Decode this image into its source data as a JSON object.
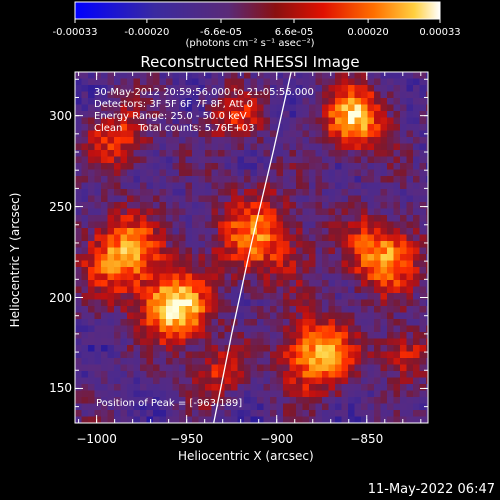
{
  "colorbar": {
    "tick_labels": [
      "-0.00033",
      "-0.00020",
      "-6.6e-05",
      "6.6e-05",
      "0.00020",
      "0.00033"
    ],
    "tick_values": [
      -0.00033,
      -0.0002,
      -6.6e-05,
      6.6e-05,
      0.0002,
      0.00033
    ],
    "range": [
      -0.00033,
      0.00033
    ],
    "unit_label": "(photons cm⁻² s⁻¹ asec⁻²)"
  },
  "chart_data": {
    "type": "heatmap",
    "title": "Reconstructed RHESSI Image",
    "xlabel": "Heliocentric X (arcsec)",
    "ylabel": "Heliocentric Y (arcsec)",
    "xlim": [
      -1012,
      -816
    ],
    "ylim": [
      131,
      324
    ],
    "x_ticks": [
      -1000,
      -950,
      -900,
      -850
    ],
    "x_tick_labels": [
      "−1000",
      "−950",
      "−900",
      "−850"
    ],
    "y_ticks": [
      150,
      200,
      250,
      300
    ],
    "y_tick_labels": [
      "150",
      "200",
      "250",
      "300"
    ],
    "info_lines": [
      "30-May-2012 20:59:56.000 to 21:05:56.000",
      "Detectors: 3F 5F 6F 7F 8F, Att 0",
      "Energy Range: 25.0 - 50.0 keV",
      "Clean     Total counts: 5.76E+03"
    ],
    "peak_label": "Position of Peak = [-963,189]",
    "peak_position": [
      -963,
      189
    ],
    "limb_curve": [
      [
        -935,
        131
      ],
      [
        -925,
        180
      ],
      [
        -914,
        230
      ],
      [
        -902,
        280
      ],
      [
        -892,
        324
      ]
    ],
    "colors": {
      "limb": "#ffffff",
      "background": "#000000",
      "colormap": [
        "#0000ff",
        "#2a1a9a",
        "#4b2a8e",
        "#5a2a80",
        "#7a1830",
        "#c01010",
        "#ff3000",
        "#ff8000",
        "#ffd040",
        "#ffffe0"
      ]
    },
    "grid": false
  },
  "footer": {
    "date": "11-May-2022 06:47"
  }
}
